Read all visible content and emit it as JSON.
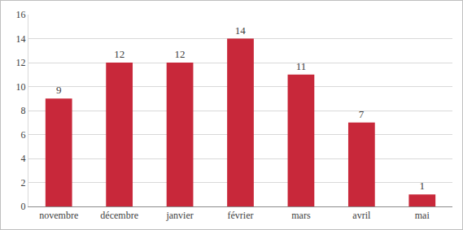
{
  "chart_data": {
    "type": "bar",
    "categories": [
      "novembre",
      "décembre",
      "janvier",
      "février",
      "mars",
      "avril",
      "mai"
    ],
    "values": [
      9,
      12,
      12,
      14,
      11,
      7,
      1
    ],
    "color": "#c8283a",
    "ylim": [
      0,
      16
    ],
    "yticks": [
      0,
      2,
      4,
      6,
      8,
      10,
      12,
      14,
      16
    ],
    "grid": true,
    "data_labels": true
  }
}
